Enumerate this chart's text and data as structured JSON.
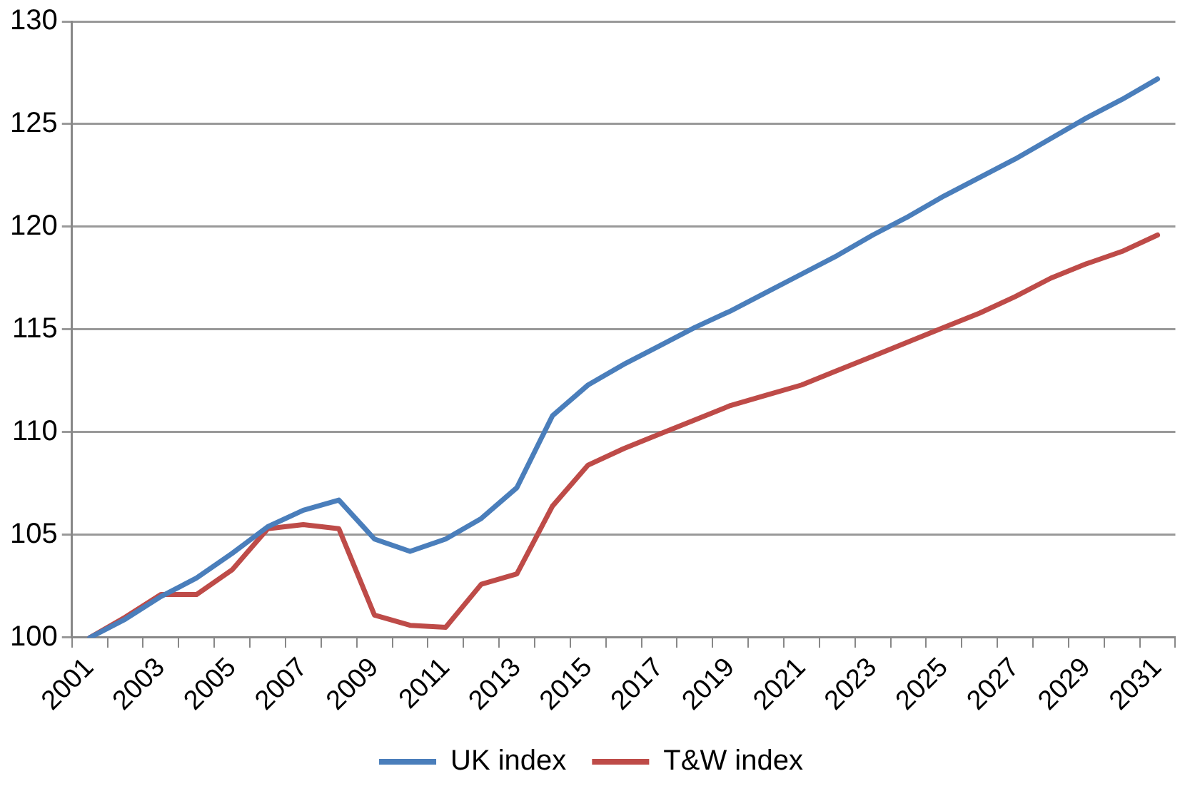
{
  "chart_data": {
    "type": "line",
    "categories": [
      "2001",
      null,
      "2003",
      null,
      "2005",
      null,
      "2007",
      null,
      "2009",
      null,
      "2011",
      null,
      "2013",
      null,
      "2015",
      null,
      "2017",
      null,
      "2019",
      null,
      "2021",
      null,
      "2023",
      null,
      "2025",
      null,
      "2027",
      null,
      "2029",
      null,
      "2031"
    ],
    "series": [
      {
        "name": "UK index",
        "color": "#4a7ebb",
        "values": [
          100,
          100.9,
          102.0,
          102.9,
          104.1,
          105.4,
          106.2,
          106.7,
          104.8,
          104.2,
          104.8,
          105.8,
          107.3,
          110.8,
          112.3,
          113.3,
          114.2,
          115.1,
          115.9,
          116.8,
          117.7,
          118.6,
          119.6,
          120.5,
          121.5,
          122.4,
          123.3,
          124.3,
          125.3,
          126.2,
          127.2
        ]
      },
      {
        "name": "T&W index",
        "color": "#be4b48",
        "values": [
          100,
          101.0,
          102.1,
          102.1,
          103.3,
          105.3,
          105.5,
          105.3,
          101.1,
          100.6,
          100.5,
          102.6,
          103.1,
          106.4,
          108.4,
          109.2,
          109.9,
          110.6,
          111.3,
          111.8,
          112.3,
          113.0,
          113.7,
          114.4,
          115.1,
          115.8,
          116.6,
          117.5,
          118.2,
          118.8,
          119.6
        ]
      }
    ],
    "ylim": [
      100,
      130
    ],
    "yticks": [
      100,
      105,
      110,
      115,
      120,
      125,
      130
    ],
    "grid": "y",
    "legend": "bottom",
    "marker": "none",
    "line_style": "solid"
  }
}
